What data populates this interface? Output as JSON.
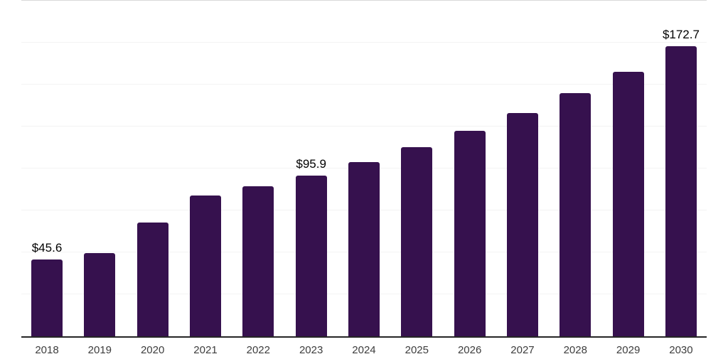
{
  "page": {
    "background": "#ffffff"
  },
  "chart_data": {
    "type": "bar",
    "title": "",
    "xlabel": "",
    "ylabel": "",
    "categories": [
      "2018",
      "2019",
      "2020",
      "2021",
      "2022",
      "2023",
      "2024",
      "2025",
      "2026",
      "2027",
      "2028",
      "2029",
      "2030"
    ],
    "values": [
      45.6,
      49.7,
      67.9,
      84.1,
      89.6,
      95.9,
      104.0,
      112.9,
      122.3,
      132.9,
      144.8,
      157.5,
      172.7
    ],
    "data_labels": [
      "$45.6",
      null,
      null,
      null,
      null,
      "$95.9",
      null,
      null,
      null,
      null,
      null,
      null,
      "$172.7"
    ],
    "ylim": [
      0,
      200
    ],
    "gridline_step": 25,
    "grid": "horizontal, very light, $25 intervals, no y tick labels",
    "legend": "none",
    "colors": {
      "bar": "#36114e",
      "axis_line": "#262626",
      "gridline": "#f3f3f3",
      "top_gridline": "#d9d9d9",
      "tick_label": "#3d3d3d",
      "data_label": "#000000"
    }
  }
}
